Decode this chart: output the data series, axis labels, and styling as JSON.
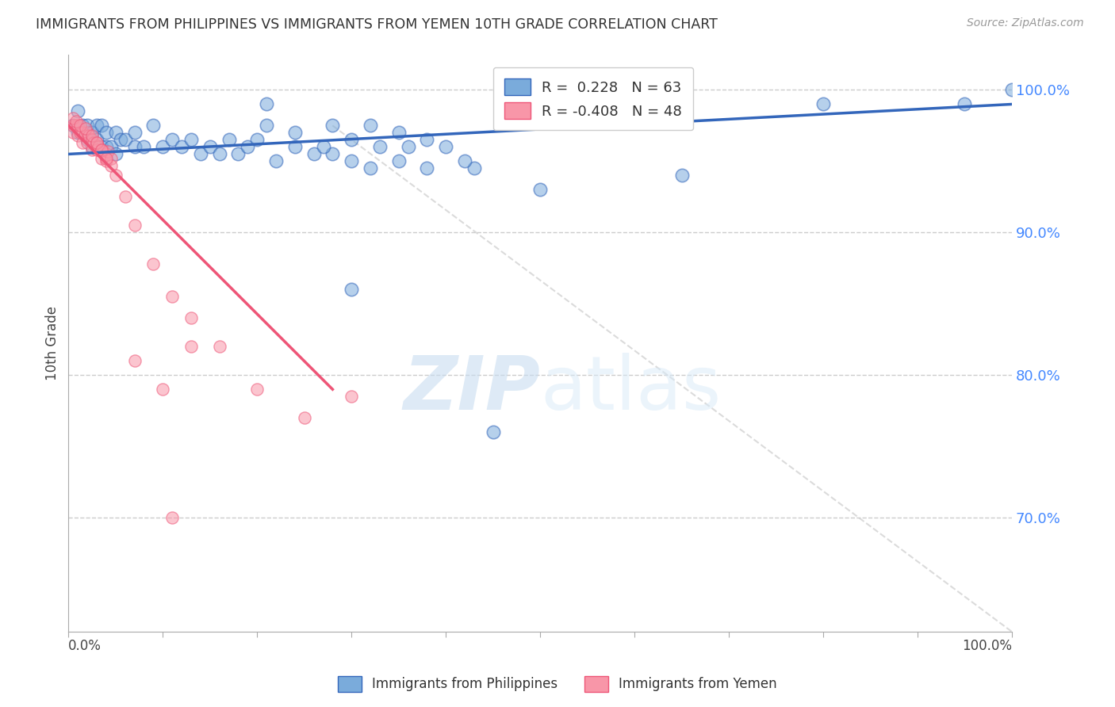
{
  "title": "IMMIGRANTS FROM PHILIPPINES VS IMMIGRANTS FROM YEMEN 10TH GRADE CORRELATION CHART",
  "source": "Source: ZipAtlas.com",
  "ylabel": "10th Grade",
  "right_ytick_labels": [
    "100.0%",
    "90.0%",
    "80.0%",
    "70.0%"
  ],
  "right_ytick_positions": [
    1.0,
    0.9,
    0.8,
    0.7
  ],
  "xlim": [
    0.0,
    1.0
  ],
  "ylim": [
    0.62,
    1.025
  ],
  "legend_r1": "R =  0.228   N = 63",
  "legend_r2": "R = -0.408   N = 48",
  "blue_color": "#7aabdb",
  "pink_color": "#f896a8",
  "blue_line_color": "#3366bb",
  "pink_line_color": "#ee5577",
  "diag_line_color": "#cccccc",
  "blue_scatter_x": [
    0.005,
    0.01,
    0.01,
    0.015,
    0.02,
    0.02,
    0.025,
    0.025,
    0.03,
    0.03,
    0.035,
    0.035,
    0.04,
    0.04,
    0.045,
    0.05,
    0.05,
    0.055,
    0.06,
    0.07,
    0.07,
    0.08,
    0.09,
    0.1,
    0.11,
    0.12,
    0.13,
    0.14,
    0.15,
    0.16,
    0.17,
    0.18,
    0.19,
    0.2,
    0.22,
    0.24,
    0.26,
    0.28,
    0.3,
    0.32,
    0.35,
    0.38,
    0.28,
    0.3,
    0.33,
    0.36,
    0.4,
    0.43,
    0.21,
    0.24,
    0.27,
    0.21,
    0.32,
    0.35,
    0.38,
    0.42,
    0.5,
    0.65,
    0.8,
    0.95,
    1.0,
    0.45,
    0.3
  ],
  "blue_scatter_y": [
    0.975,
    0.985,
    0.97,
    0.975,
    0.975,
    0.965,
    0.97,
    0.96,
    0.975,
    0.965,
    0.975,
    0.96,
    0.97,
    0.96,
    0.96,
    0.97,
    0.955,
    0.965,
    0.965,
    0.97,
    0.96,
    0.96,
    0.975,
    0.96,
    0.965,
    0.96,
    0.965,
    0.955,
    0.96,
    0.955,
    0.965,
    0.955,
    0.96,
    0.965,
    0.95,
    0.96,
    0.955,
    0.955,
    0.95,
    0.945,
    0.95,
    0.945,
    0.975,
    0.965,
    0.96,
    0.96,
    0.96,
    0.945,
    0.975,
    0.97,
    0.96,
    0.99,
    0.975,
    0.97,
    0.965,
    0.95,
    0.93,
    0.94,
    0.99,
    0.99,
    1.0,
    0.76,
    0.86
  ],
  "pink_scatter_x": [
    0.005,
    0.005,
    0.007,
    0.01,
    0.01,
    0.012,
    0.015,
    0.015,
    0.017,
    0.02,
    0.02,
    0.022,
    0.025,
    0.025,
    0.027,
    0.03,
    0.03,
    0.032,
    0.035,
    0.035,
    0.037,
    0.04,
    0.04,
    0.042,
    0.045,
    0.045,
    0.005,
    0.008,
    0.012,
    0.018,
    0.025,
    0.03,
    0.035,
    0.04,
    0.05,
    0.06,
    0.07,
    0.09,
    0.11,
    0.13,
    0.16,
    0.2,
    0.25,
    0.3,
    0.07,
    0.1,
    0.13,
    0.11
  ],
  "pink_scatter_y": [
    0.975,
    0.97,
    0.975,
    0.975,
    0.968,
    0.97,
    0.97,
    0.963,
    0.968,
    0.97,
    0.963,
    0.968,
    0.965,
    0.958,
    0.963,
    0.963,
    0.958,
    0.96,
    0.958,
    0.952,
    0.957,
    0.955,
    0.95,
    0.957,
    0.952,
    0.947,
    0.98,
    0.978,
    0.975,
    0.973,
    0.968,
    0.963,
    0.958,
    0.952,
    0.94,
    0.925,
    0.905,
    0.878,
    0.855,
    0.84,
    0.82,
    0.79,
    0.77,
    0.785,
    0.81,
    0.79,
    0.82,
    0.7
  ],
  "blue_line_x": [
    0.0,
    1.0
  ],
  "blue_line_y": [
    0.955,
    0.99
  ],
  "pink_line_x": [
    0.0,
    0.28
  ],
  "pink_line_y": [
    0.975,
    0.79
  ],
  "diag_line_x": [
    0.28,
    1.0
  ],
  "diag_line_y": [
    0.975,
    0.62
  ],
  "watermark_zip": "ZIP",
  "watermark_atlas": "atlas",
  "grid_color": "#cccccc",
  "grid_linestyle": "--"
}
